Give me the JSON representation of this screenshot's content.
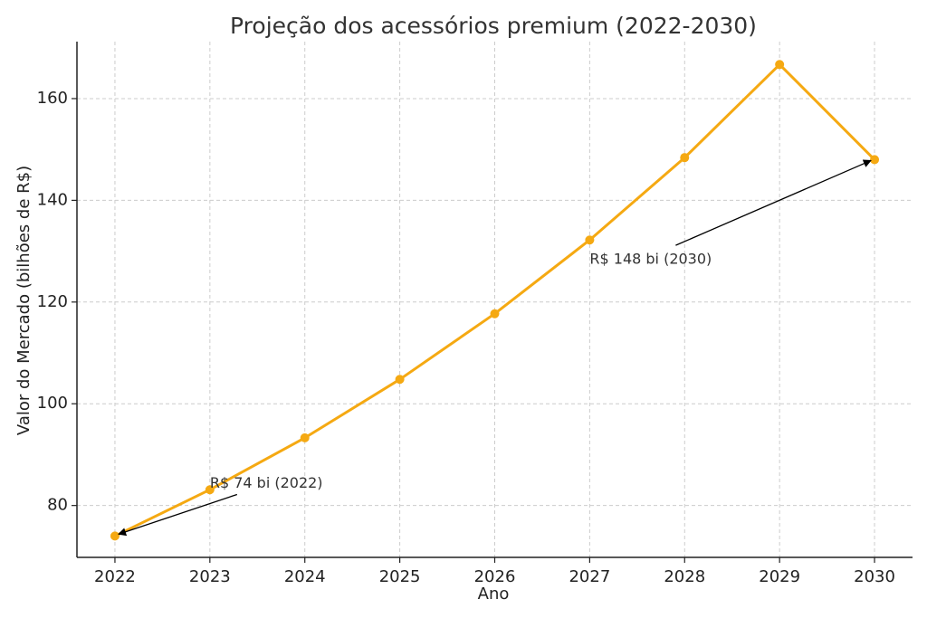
{
  "chart_data": {
    "type": "line",
    "title": "Projeção dos acessórios premium (2022-2030)",
    "xlabel": "Ano",
    "ylabel": "Valor do Mercado (bilhões de R$)",
    "x": [
      2022,
      2023,
      2024,
      2025,
      2026,
      2027,
      2028,
      2029,
      2030
    ],
    "series": [
      {
        "values": [
          74.0,
          83.1,
          93.3,
          104.8,
          117.7,
          132.2,
          148.4,
          166.7,
          148.0
        ],
        "color": "#f5a912"
      }
    ],
    "xlim": [
      2021.6,
      2030.4
    ],
    "ylim": [
      69.8,
      171.2
    ],
    "yticks": [
      80,
      100,
      120,
      140,
      160
    ],
    "xtick_labels": [
      "2022",
      "2023",
      "2024",
      "2025",
      "2026",
      "2027",
      "2028",
      "2029",
      "2030"
    ],
    "ytick_labels": [
      "80",
      "100",
      "120",
      "140",
      "160"
    ],
    "grid": true,
    "annotations": [
      {
        "text": "R$ 74 bi (2022)",
        "point": [
          2022,
          74.0
        ],
        "text_at": [
          2023,
          84.3
        ]
      },
      {
        "text": "R$ 148 bi (2030)",
        "point": [
          2030,
          148.0
        ],
        "text_at": [
          2027,
          128.3
        ]
      }
    ]
  }
}
